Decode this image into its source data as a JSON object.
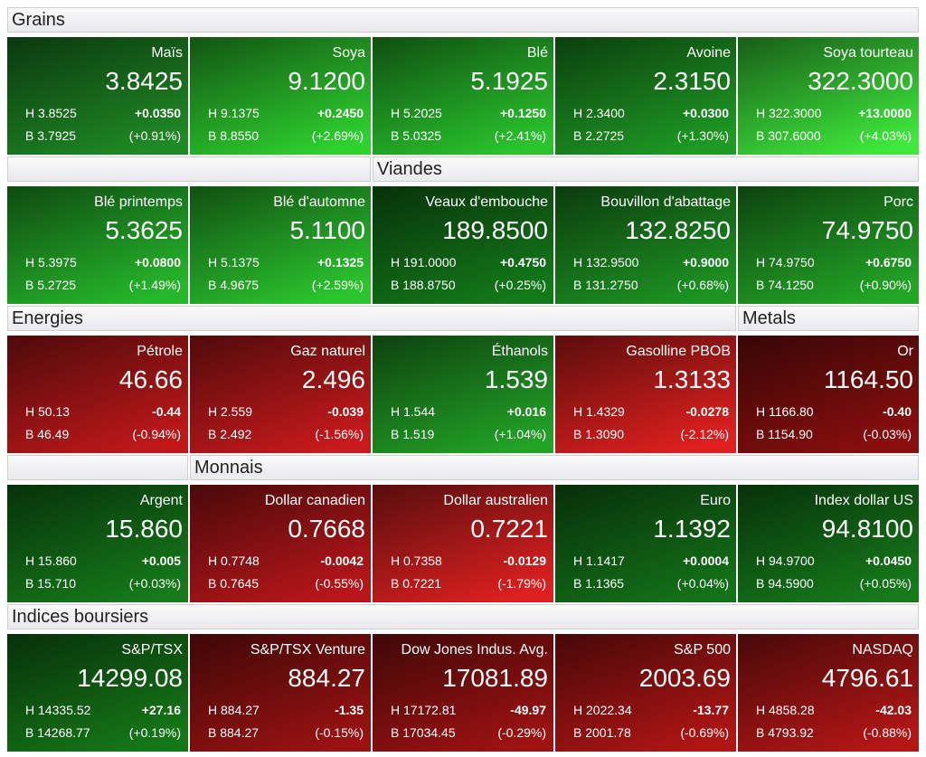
{
  "groups": [
    {
      "title": "Grains",
      "tiles": [
        {
          "name": "Maïs",
          "price": "3.8425",
          "high": "H 3.8525",
          "change": "+0.0350",
          "low": "B 3.7925",
          "pct": "(+0.91%)",
          "color": "#1f8a25"
        },
        {
          "name": "Soya",
          "price": "9.1200",
          "high": "H 9.1375",
          "change": "+0.2450",
          "low": "B 8.8550",
          "pct": "(+2.69%)",
          "color": "#2ed12f"
        },
        {
          "name": "Blé",
          "price": "5.1925",
          "high": "H 5.2025",
          "change": "+0.1250",
          "low": "B 5.0325",
          "pct": "(+2.41%)",
          "color": "#29c42c"
        },
        {
          "name": "Avoine",
          "price": "2.3150",
          "high": "H 2.3400",
          "change": "+0.0300",
          "low": "B 2.2725",
          "pct": "(+1.30%)",
          "color": "#1e9a24"
        },
        {
          "name": "Soya tourteau",
          "price": "322.3000",
          "high": "H 322.3000",
          "change": "+13.0000",
          "low": "B 307.6000",
          "pct": "(+4.03%)",
          "color": "#3ee83c"
        },
        {
          "name": "Blé printemps",
          "price": "5.3625",
          "high": "H 5.3975",
          "change": "+0.0800",
          "low": "B 5.2725",
          "pct": "(+1.49%)",
          "color": "#26b82b"
        },
        {
          "name": "Blé d'automne",
          "price": "5.1100",
          "high": "H 5.1375",
          "change": "+0.1325",
          "low": "B 4.9675",
          "pct": "(+2.59%)",
          "color": "#2bc62e"
        }
      ]
    },
    {
      "title": "Viandes",
      "tiles": [
        {
          "name": "Veaux d'embouche",
          "price": "189.8500",
          "high": "H 191.0000",
          "change": "+0.4750",
          "low": "B 188.8750",
          "pct": "(+0.25%)",
          "color": "#137a1a"
        },
        {
          "name": "Bouvillon d'abattage",
          "price": "132.8250",
          "high": "H 132.9500",
          "change": "+0.9000",
          "low": "B 131.2750",
          "pct": "(+0.68%)",
          "color": "#1d9422"
        },
        {
          "name": "Porc",
          "price": "74.9750",
          "high": "H 74.9750",
          "change": "+0.6750",
          "low": "B 74.1250",
          "pct": "(+0.90%)",
          "color": "#22a626"
        }
      ]
    },
    {
      "title": "Energies",
      "tiles": [
        {
          "name": "Pétrole",
          "price": "46.66",
          "high": "H 50.13",
          "change": "-0.44",
          "low": "B 46.49",
          "pct": "(-0.94%)",
          "color": "#c0181a"
        },
        {
          "name": "Gaz naturel",
          "price": "2.496",
          "high": "H 2.559",
          "change": "-0.039",
          "low": "B 2.492",
          "pct": "(-1.56%)",
          "color": "#c81a1c"
        },
        {
          "name": "Éthanols",
          "price": "1.539",
          "high": "H 1.544",
          "change": "+0.016",
          "low": "B 1.519",
          "pct": "(+1.04%)",
          "color": "#22a226"
        },
        {
          "name": "Gasolline PBOB",
          "price": "1.3133",
          "high": "H 1.4329",
          "change": "-0.0278",
          "low": "B 1.3090",
          "pct": "(-2.12%)",
          "color": "#e0201f"
        }
      ]
    },
    {
      "title": "Metals",
      "tiles": [
        {
          "name": "Or",
          "price": "1164.50",
          "high": "H 1166.80",
          "change": "-0.40",
          "low": "B 1154.90",
          "pct": "(-0.03%)",
          "color": "#8a0e0e"
        },
        {
          "name": "Argent",
          "price": "15.860",
          "high": "H 15.860",
          "change": "+0.005",
          "low": "B 15.710",
          "pct": "(+0.03%)",
          "color": "#157a1a"
        }
      ]
    },
    {
      "title": "Monnais",
      "tiles": [
        {
          "name": "Dollar canadien",
          "price": "0.7668",
          "high": "H 0.7748",
          "change": "-0.0042",
          "low": "B 0.7645",
          "pct": "(-0.55%)",
          "color": "#b8161a"
        },
        {
          "name": "Dollar australien",
          "price": "0.7221",
          "high": "H 0.7358",
          "change": "-0.0129",
          "low": "B 0.7221",
          "pct": "(-1.79%)",
          "color": "#dd2020"
        },
        {
          "name": "Euro",
          "price": "1.1392",
          "high": "H 1.1417",
          "change": "+0.0004",
          "low": "B 1.1365",
          "pct": "(+0.04%)",
          "color": "#137218"
        },
        {
          "name": "Index dollar US",
          "price": "94.8100",
          "high": "H 94.9700",
          "change": "+0.0450",
          "low": "B 94.5900",
          "pct": "(+0.05%)",
          "color": "#157a1a"
        }
      ]
    },
    {
      "title": "Indices boursiers",
      "tiles": [
        {
          "name": "S&P/TSX",
          "price": "14299.08",
          "high": "H 14335.52",
          "change": "+27.16",
          "low": "B 14268.77",
          "pct": "(+0.19%)",
          "color": "#157818"
        },
        {
          "name": "S&P/TSX Venture",
          "price": "884.27",
          "high": "H 884.27",
          "change": "-1.35",
          "low": "B 884.27",
          "pct": "(-0.15%)",
          "color": "#9a1212"
        },
        {
          "name": "Dow Jones Indus. Avg.",
          "price": "17081.89",
          "high": "H 17172.81",
          "change": "-49.97",
          "low": "B 17034.45",
          "pct": "(-0.29%)",
          "color": "#9e1212"
        },
        {
          "name": "S&P 500",
          "price": "2003.69",
          "high": "H 2022.34",
          "change": "-13.77",
          "low": "B 2001.78",
          "pct": "(-0.69%)",
          "color": "#b01515"
        },
        {
          "name": "NASDAQ",
          "price": "4796.61",
          "high": "H 4858.28",
          "change": "-42.03",
          "low": "B 4793.92",
          "pct": "(-0.88%)",
          "color": "#b41616"
        }
      ]
    }
  ]
}
